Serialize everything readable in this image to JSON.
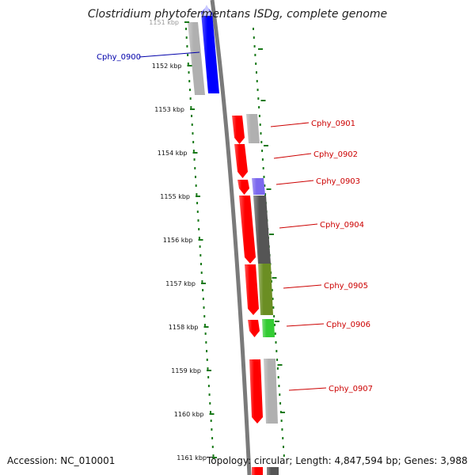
{
  "title": "Clostridium phytofermentans ISDg, complete genome",
  "footer": {
    "accession": "Accession: NC_010001",
    "summary": "Topology: circular; Length: 4,847,594 bp; Genes: 3,988"
  },
  "ruler": {
    "ticks": [
      "1151 kbp",
      "1152 kbp",
      "1153 kbp",
      "1154 kbp",
      "1155 kbp",
      "1156 kbp",
      "1157 kbp",
      "1158 kbp",
      "1159 kbp",
      "1160 kbp",
      "1161 kbp"
    ]
  },
  "colors": {
    "tick": "#1a7a1a",
    "backbone": "#7a7a7a",
    "forward_gene": "#ff0000",
    "highlight": "#0000ff",
    "gray_feature": "#b0b0b0",
    "dark_feature": "#555555",
    "olive_feature": "#6b8e23",
    "green_feature": "#33cc33",
    "purple_feature": "#7b68ee",
    "red_label": "#cc0000",
    "blue_label": "#0000aa"
  },
  "genes": [
    {
      "label": "Cphy_0900",
      "color": "blue_label"
    },
    {
      "label": "Cphy_0901",
      "color": "red_label"
    },
    {
      "label": "Cphy_0902",
      "color": "red_label"
    },
    {
      "label": "Cphy_0903",
      "color": "red_label"
    },
    {
      "label": "Cphy_0904",
      "color": "red_label"
    },
    {
      "label": "Cphy_0905",
      "color": "red_label"
    },
    {
      "label": "Cphy_0906",
      "color": "red_label"
    },
    {
      "label": "Cphy_0907",
      "color": "red_label"
    }
  ]
}
